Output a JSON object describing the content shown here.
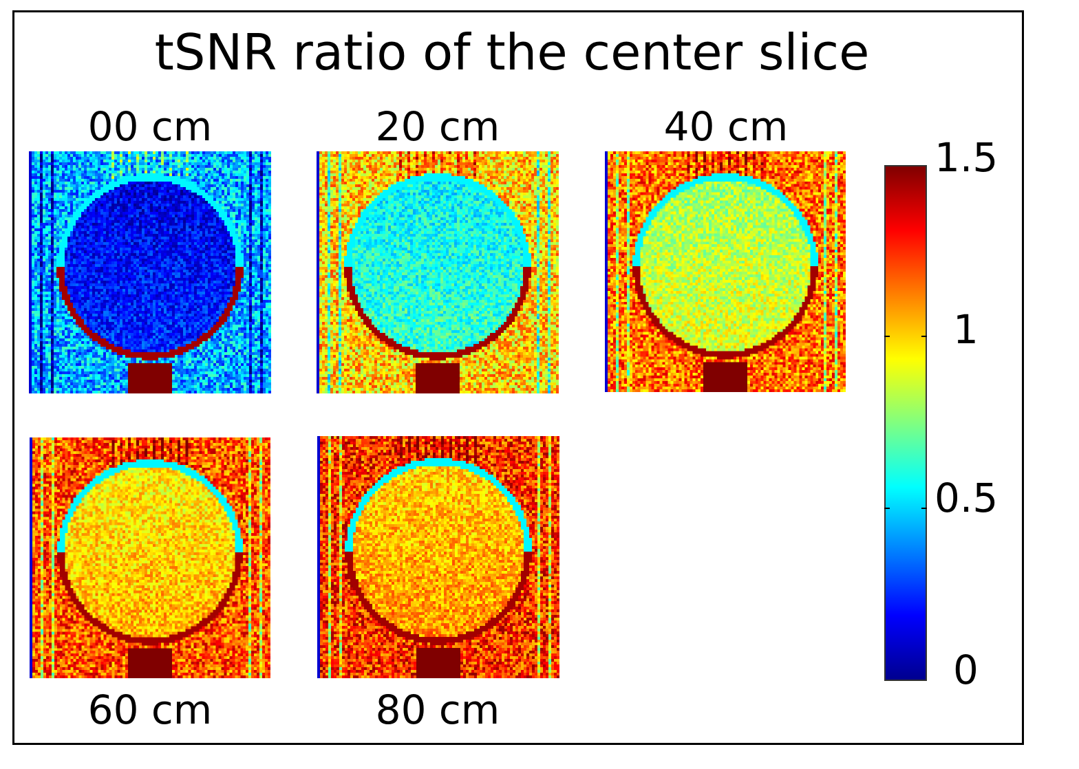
{
  "chart_data": {
    "type": "heatmap",
    "title": "tSNR ratio of the center slice",
    "panels": [
      {
        "label": "00 cm",
        "phantom_mean_ratio": 0.2,
        "background_mean_ratio": 0.45
      },
      {
        "label": "20 cm",
        "phantom_mean_ratio": 0.6,
        "background_mean_ratio": 1.0
      },
      {
        "label": "40 cm",
        "phantom_mean_ratio": 0.85,
        "background_mean_ratio": 1.15
      },
      {
        "label": "60 cm",
        "phantom_mean_ratio": 1.0,
        "background_mean_ratio": 1.2
      },
      {
        "label": "80 cm",
        "phantom_mean_ratio": 1.05,
        "background_mean_ratio": 1.25
      }
    ],
    "colorbar": {
      "colormap": "jet",
      "range": [
        0,
        1.5
      ],
      "ticks": [
        "0",
        "0.5",
        "1",
        "1.5"
      ]
    }
  }
}
